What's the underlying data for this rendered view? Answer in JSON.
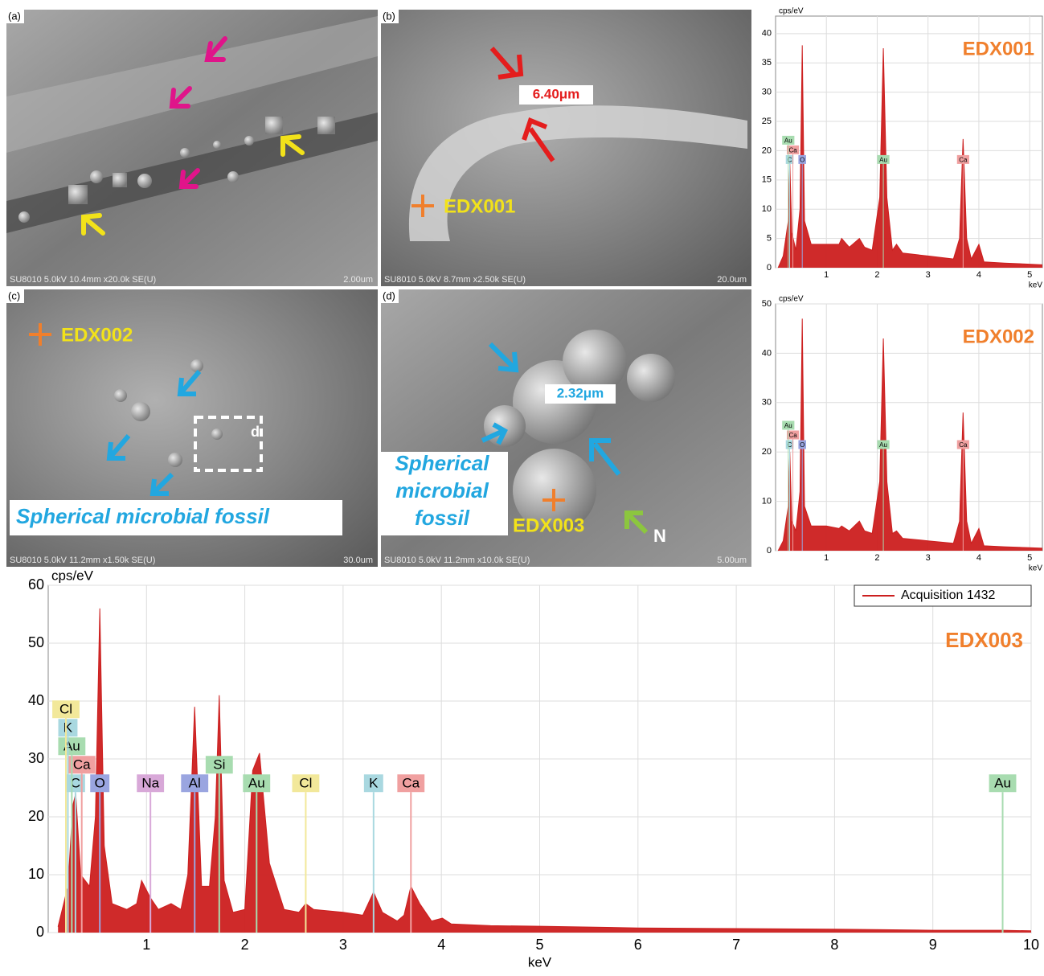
{
  "panels": [
    {
      "label": "(a)",
      "footer": "SU8010 5.0kV 10.4mm x20.0k SE(U)",
      "scale": "2.00um"
    },
    {
      "label": "(b)",
      "footer": "SU8010 5.0kV 8.7mm x2.50k SE(U)",
      "scale": "20.0um",
      "annotations": [
        "6.40μm",
        "EDX001"
      ]
    },
    {
      "label": "(c)",
      "footer": "SU8010 5.0kV 11.2mm x1.50k SE(U)",
      "scale": "30.0um",
      "annotations": [
        "EDX002",
        "d",
        "Spherical microbial fossil"
      ]
    },
    {
      "label": "(d)",
      "footer": "SU8010 5.0kV 11.2mm x10.0k SE(U)",
      "scale": "5.00um",
      "annotations": [
        "2.32μm",
        "Spherical",
        "microbial",
        "fossil",
        "EDX003",
        "N"
      ]
    }
  ],
  "chart_data": [
    {
      "type": "area",
      "title": "EDX001",
      "y_label": "cps/eV",
      "x_label": "keV",
      "x": [
        0.05,
        0.15,
        0.25,
        0.28,
        0.32,
        0.4,
        0.48,
        0.525,
        0.57,
        0.7,
        1.0,
        1.25,
        1.3,
        1.45,
        1.65,
        1.75,
        1.9,
        2.05,
        2.12,
        2.19,
        2.3,
        2.38,
        2.5,
        3.0,
        3.5,
        3.62,
        3.69,
        3.76,
        3.85,
        4.0,
        4.1,
        4.5,
        5.0,
        5.25
      ],
      "series": [
        {
          "color": "#cc1f1f",
          "values": [
            0,
            2,
            8,
            18,
            6,
            3,
            10,
            38,
            8,
            4,
            4,
            4,
            5,
            3.5,
            5,
            3.5,
            3,
            12,
            37.5,
            12,
            3,
            4,
            2.5,
            2,
            1.5,
            5,
            22,
            5,
            1.5,
            4,
            1,
            0.8,
            0.6,
            0.5
          ]
        }
      ],
      "xlim": [
        0,
        5.25
      ],
      "ylim": [
        0,
        43
      ],
      "xticks": [
        1,
        2,
        3,
        4,
        5
      ],
      "yticks": [
        0,
        5,
        10,
        15,
        20,
        25,
        30,
        35,
        40
      ],
      "grid": true,
      "markers": [
        {
          "label": "C",
          "x": 0.277,
          "color": "#a9d8e0"
        },
        {
          "label": "O",
          "x": 0.525,
          "color": "#9aa5e0"
        },
        {
          "label": "Au",
          "x": 2.12,
          "color": "#a8dcb0"
        },
        {
          "label": "Ca",
          "x": 3.69,
          "color": "#f0a0a0"
        },
        {
          "label": "Ca",
          "x": 0.341,
          "color": "#f0a0a0"
        },
        {
          "label": "Au",
          "x": 0.25,
          "color": "#a8dcb0"
        }
      ]
    },
    {
      "type": "area",
      "title": "EDX002",
      "y_label": "cps/eV",
      "x_label": "keV",
      "x": [
        0.05,
        0.15,
        0.25,
        0.28,
        0.32,
        0.4,
        0.48,
        0.525,
        0.57,
        0.7,
        1.0,
        1.25,
        1.3,
        1.45,
        1.65,
        1.75,
        1.9,
        2.05,
        2.12,
        2.19,
        2.3,
        2.38,
        2.5,
        3.0,
        3.5,
        3.62,
        3.69,
        3.76,
        3.85,
        4.0,
        4.1,
        4.5,
        5.0,
        5.25
      ],
      "series": [
        {
          "color": "#cc1f1f",
          "values": [
            0,
            2,
            9,
            20,
            6,
            4,
            12,
            47,
            9,
            5,
            5,
            4.5,
            5,
            4,
            6,
            4,
            3.5,
            14,
            43,
            14,
            3.5,
            4,
            2.5,
            2,
            1.5,
            6,
            28,
            6,
            1.5,
            4.5,
            1,
            0.8,
            0.6,
            0.5
          ]
        }
      ],
      "xlim": [
        0,
        5.25
      ],
      "ylim": [
        0,
        50
      ],
      "xticks": [
        1,
        2,
        3,
        4,
        5
      ],
      "yticks": [
        0,
        10,
        20,
        30,
        40,
        50
      ],
      "grid": true,
      "markers": [
        {
          "label": "C",
          "x": 0.277,
          "color": "#a9d8e0"
        },
        {
          "label": "O",
          "x": 0.525,
          "color": "#9aa5e0"
        },
        {
          "label": "Au",
          "x": 2.12,
          "color": "#a8dcb0"
        },
        {
          "label": "Ca",
          "x": 3.69,
          "color": "#f0a0a0"
        },
        {
          "label": "Ca",
          "x": 0.341,
          "color": "#f0a0a0"
        },
        {
          "label": "Au",
          "x": 0.25,
          "color": "#a8dcb0"
        }
      ]
    },
    {
      "type": "area",
      "title": "EDX003",
      "y_label": "cps/eV",
      "x_label": "keV",
      "x": [
        0.1,
        0.2,
        0.25,
        0.28,
        0.33,
        0.42,
        0.48,
        0.525,
        0.57,
        0.65,
        0.8,
        0.9,
        0.95,
        1.04,
        1.12,
        1.25,
        1.35,
        1.42,
        1.49,
        1.56,
        1.64,
        1.7,
        1.74,
        1.79,
        1.88,
        2.0,
        2.08,
        2.15,
        2.25,
        2.4,
        2.55,
        2.62,
        2.7,
        3.0,
        3.2,
        3.31,
        3.4,
        3.55,
        3.62,
        3.69,
        3.78,
        3.9,
        4.01,
        4.1,
        4.5,
        5,
        6,
        7,
        8,
        8.5,
        9,
        9.7,
        10
      ],
      "series": [
        {
          "name": "Acquisition 1432",
          "color": "#cc1f1f",
          "values": [
            1,
            8,
            22,
            24,
            10,
            8,
            20,
            56,
            15,
            5,
            4,
            5,
            9,
            6,
            4,
            5,
            4,
            10,
            39,
            8,
            8,
            20,
            41,
            9,
            3.5,
            4,
            28,
            31,
            12,
            4,
            3.5,
            5,
            4,
            3.5,
            3,
            7,
            3.5,
            2,
            3,
            8,
            5,
            2,
            2.5,
            1.5,
            1.2,
            1.1,
            0.8,
            0.7,
            0.6,
            0.5,
            0.4,
            0.4,
            0.3
          ]
        }
      ],
      "xlim": [
        0,
        10
      ],
      "ylim": [
        0,
        60
      ],
      "xticks": [
        1,
        2,
        3,
        4,
        5,
        6,
        7,
        8,
        9,
        10
      ],
      "yticks": [
        0,
        10,
        20,
        30,
        40,
        50,
        60
      ],
      "grid": true,
      "legend": "upper right",
      "markers": [
        {
          "label": "C",
          "x": 0.277,
          "color": "#a9d8e0"
        },
        {
          "label": "O",
          "x": 0.525,
          "color": "#9aa5e0"
        },
        {
          "label": "Na",
          "x": 1.04,
          "color": "#d8a8d8"
        },
        {
          "label": "Al",
          "x": 1.49,
          "color": "#9aa5e0"
        },
        {
          "label": "Si",
          "x": 1.74,
          "color": "#a8dcb0"
        },
        {
          "label": "Au",
          "x": 2.12,
          "color": "#a8dcb0"
        },
        {
          "label": "Cl",
          "x": 2.62,
          "color": "#f2e89a"
        },
        {
          "label": "K",
          "x": 3.31,
          "color": "#a9d8e0"
        },
        {
          "label": "Ca",
          "x": 3.69,
          "color": "#f0a0a0"
        },
        {
          "label": "Au",
          "x": 9.71,
          "color": "#a8dcb0"
        },
        {
          "label": "Ca",
          "x": 0.341,
          "color": "#f0a0a0"
        },
        {
          "label": "Au",
          "x": 0.24,
          "color": "#a8dcb0"
        },
        {
          "label": "K",
          "x": 0.2,
          "color": "#a9d8e0"
        },
        {
          "label": "Cl",
          "x": 0.18,
          "color": "#f2e89a"
        }
      ]
    }
  ]
}
